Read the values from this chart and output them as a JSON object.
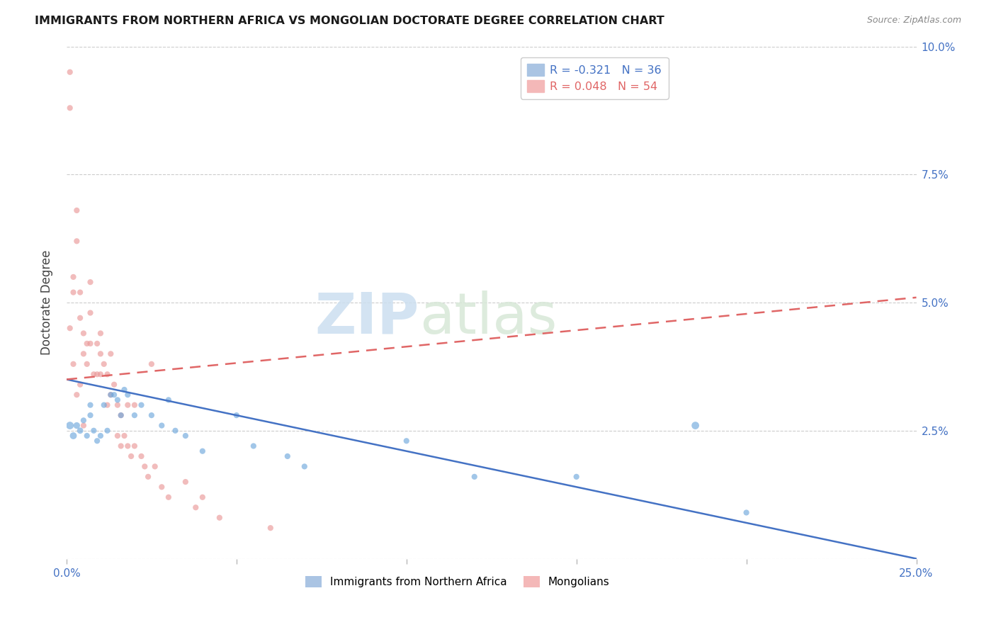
{
  "title": "IMMIGRANTS FROM NORTHERN AFRICA VS MONGOLIAN DOCTORATE DEGREE CORRELATION CHART",
  "source": "Source: ZipAtlas.com",
  "ylabel": "Doctorate Degree",
  "watermark_part1": "ZIP",
  "watermark_part2": "atlas",
  "xlim": [
    0.0,
    0.25
  ],
  "ylim": [
    0.0,
    0.1
  ],
  "xticks": [
    0.0,
    0.05,
    0.1,
    0.15,
    0.2,
    0.25
  ],
  "xtick_labels": [
    "0.0%",
    "",
    "",
    "",
    "",
    "25.0%"
  ],
  "yticks": [
    0.0,
    0.025,
    0.05,
    0.075,
    0.1
  ],
  "ytick_labels_right": [
    "",
    "2.5%",
    "5.0%",
    "7.5%",
    "10.0%"
  ],
  "blue_series": {
    "name": "Immigrants from Northern Africa",
    "color": "#6fa8dc",
    "R": -0.321,
    "N": 36,
    "x": [
      0.001,
      0.002,
      0.003,
      0.004,
      0.005,
      0.006,
      0.007,
      0.007,
      0.008,
      0.009,
      0.01,
      0.011,
      0.012,
      0.013,
      0.014,
      0.015,
      0.016,
      0.017,
      0.018,
      0.02,
      0.022,
      0.025,
      0.028,
      0.03,
      0.032,
      0.035,
      0.04,
      0.05,
      0.055,
      0.065,
      0.07,
      0.1,
      0.12,
      0.15,
      0.185,
      0.2
    ],
    "y": [
      0.026,
      0.024,
      0.026,
      0.025,
      0.027,
      0.024,
      0.03,
      0.028,
      0.025,
      0.023,
      0.024,
      0.03,
      0.025,
      0.032,
      0.032,
      0.031,
      0.028,
      0.033,
      0.032,
      0.028,
      0.03,
      0.028,
      0.026,
      0.031,
      0.025,
      0.024,
      0.021,
      0.028,
      0.022,
      0.02,
      0.018,
      0.023,
      0.016,
      0.016,
      0.026,
      0.009
    ],
    "sizes": [
      60,
      50,
      45,
      40,
      35,
      35,
      35,
      35,
      35,
      35,
      35,
      35,
      35,
      35,
      35,
      35,
      35,
      35,
      35,
      35,
      35,
      35,
      35,
      35,
      35,
      35,
      35,
      35,
      35,
      35,
      35,
      35,
      35,
      35,
      60,
      35
    ]
  },
  "pink_series": {
    "name": "Mongolians",
    "color": "#ea9999",
    "R": 0.048,
    "N": 54,
    "x": [
      0.001,
      0.001,
      0.001,
      0.002,
      0.002,
      0.002,
      0.003,
      0.003,
      0.003,
      0.004,
      0.004,
      0.004,
      0.005,
      0.005,
      0.005,
      0.006,
      0.006,
      0.007,
      0.007,
      0.007,
      0.008,
      0.009,
      0.009,
      0.01,
      0.01,
      0.01,
      0.011,
      0.012,
      0.012,
      0.013,
      0.013,
      0.014,
      0.015,
      0.015,
      0.016,
      0.016,
      0.017,
      0.018,
      0.018,
      0.019,
      0.02,
      0.02,
      0.022,
      0.023,
      0.024,
      0.025,
      0.026,
      0.028,
      0.03,
      0.035,
      0.038,
      0.04,
      0.045,
      0.06
    ],
    "y": [
      0.095,
      0.088,
      0.045,
      0.055,
      0.052,
      0.038,
      0.068,
      0.062,
      0.032,
      0.052,
      0.047,
      0.034,
      0.044,
      0.04,
      0.026,
      0.042,
      0.038,
      0.054,
      0.048,
      0.042,
      0.036,
      0.042,
      0.036,
      0.044,
      0.04,
      0.036,
      0.038,
      0.036,
      0.03,
      0.04,
      0.032,
      0.034,
      0.03,
      0.024,
      0.028,
      0.022,
      0.024,
      0.03,
      0.022,
      0.02,
      0.03,
      0.022,
      0.02,
      0.018,
      0.016,
      0.038,
      0.018,
      0.014,
      0.012,
      0.015,
      0.01,
      0.012,
      0.008,
      0.006
    ],
    "sizes": [
      35,
      35,
      35,
      35,
      35,
      35,
      35,
      35,
      35,
      35,
      35,
      35,
      35,
      35,
      35,
      35,
      35,
      35,
      35,
      35,
      35,
      35,
      35,
      35,
      35,
      35,
      35,
      35,
      35,
      35,
      35,
      35,
      35,
      35,
      35,
      35,
      35,
      35,
      35,
      35,
      35,
      35,
      35,
      35,
      35,
      35,
      35,
      35,
      35,
      35,
      35,
      35,
      35,
      35
    ]
  },
  "blue_trend": {
    "x_start": 0.0,
    "x_end": 0.25,
    "y_start": 0.035,
    "y_end": 0.0
  },
  "pink_trend": {
    "x_start": 0.0,
    "x_end": 0.25,
    "y_start": 0.035,
    "y_end": 0.051
  },
  "tick_color": "#4472c4",
  "grid_color": "#cccccc",
  "title_color": "#1a1a1a",
  "source_color": "#888888"
}
